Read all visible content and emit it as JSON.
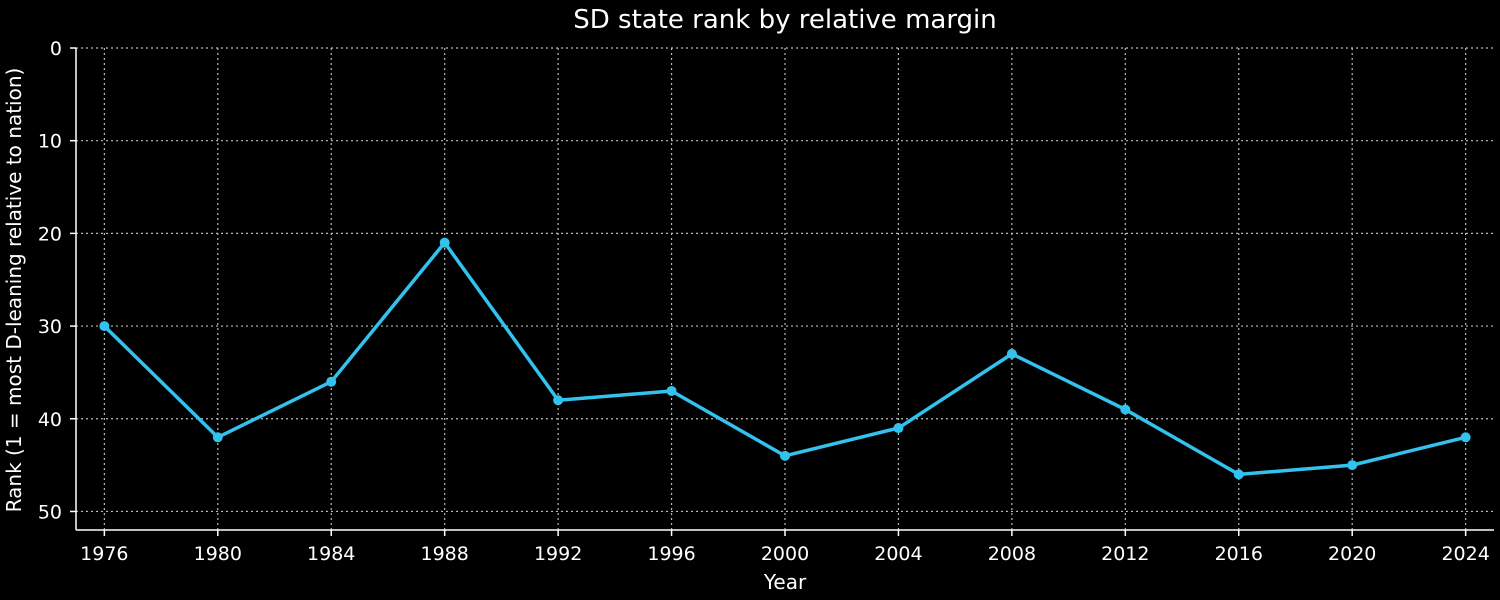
{
  "chart_data": {
    "type": "line",
    "title": "SD state rank by relative margin",
    "xlabel": "Year",
    "ylabel": "Rank (1 = most D-leaning relative to nation)",
    "x": [
      1976,
      1980,
      1984,
      1988,
      1992,
      1996,
      2000,
      2004,
      2008,
      2012,
      2016,
      2020,
      2024
    ],
    "series": [
      {
        "values": [
          30,
          42,
          36,
          21,
          38,
          37,
          44,
          41,
          33,
          39,
          46,
          45,
          42
        ]
      }
    ],
    "xticks": [
      1976,
      1980,
      1984,
      1988,
      1992,
      1996,
      2000,
      2004,
      2008,
      2012,
      2016,
      2020,
      2024
    ],
    "yticks": [
      0,
      10,
      20,
      30,
      40,
      50
    ],
    "xlim": [
      1975,
      2025
    ],
    "ylim": [
      52,
      0
    ],
    "y_inverted": true,
    "grid": true,
    "legend": false,
    "colors": {
      "background": "#000000",
      "line": "#33c1ee",
      "axis": "#ffffff",
      "grid": "#bbbbbb"
    }
  }
}
